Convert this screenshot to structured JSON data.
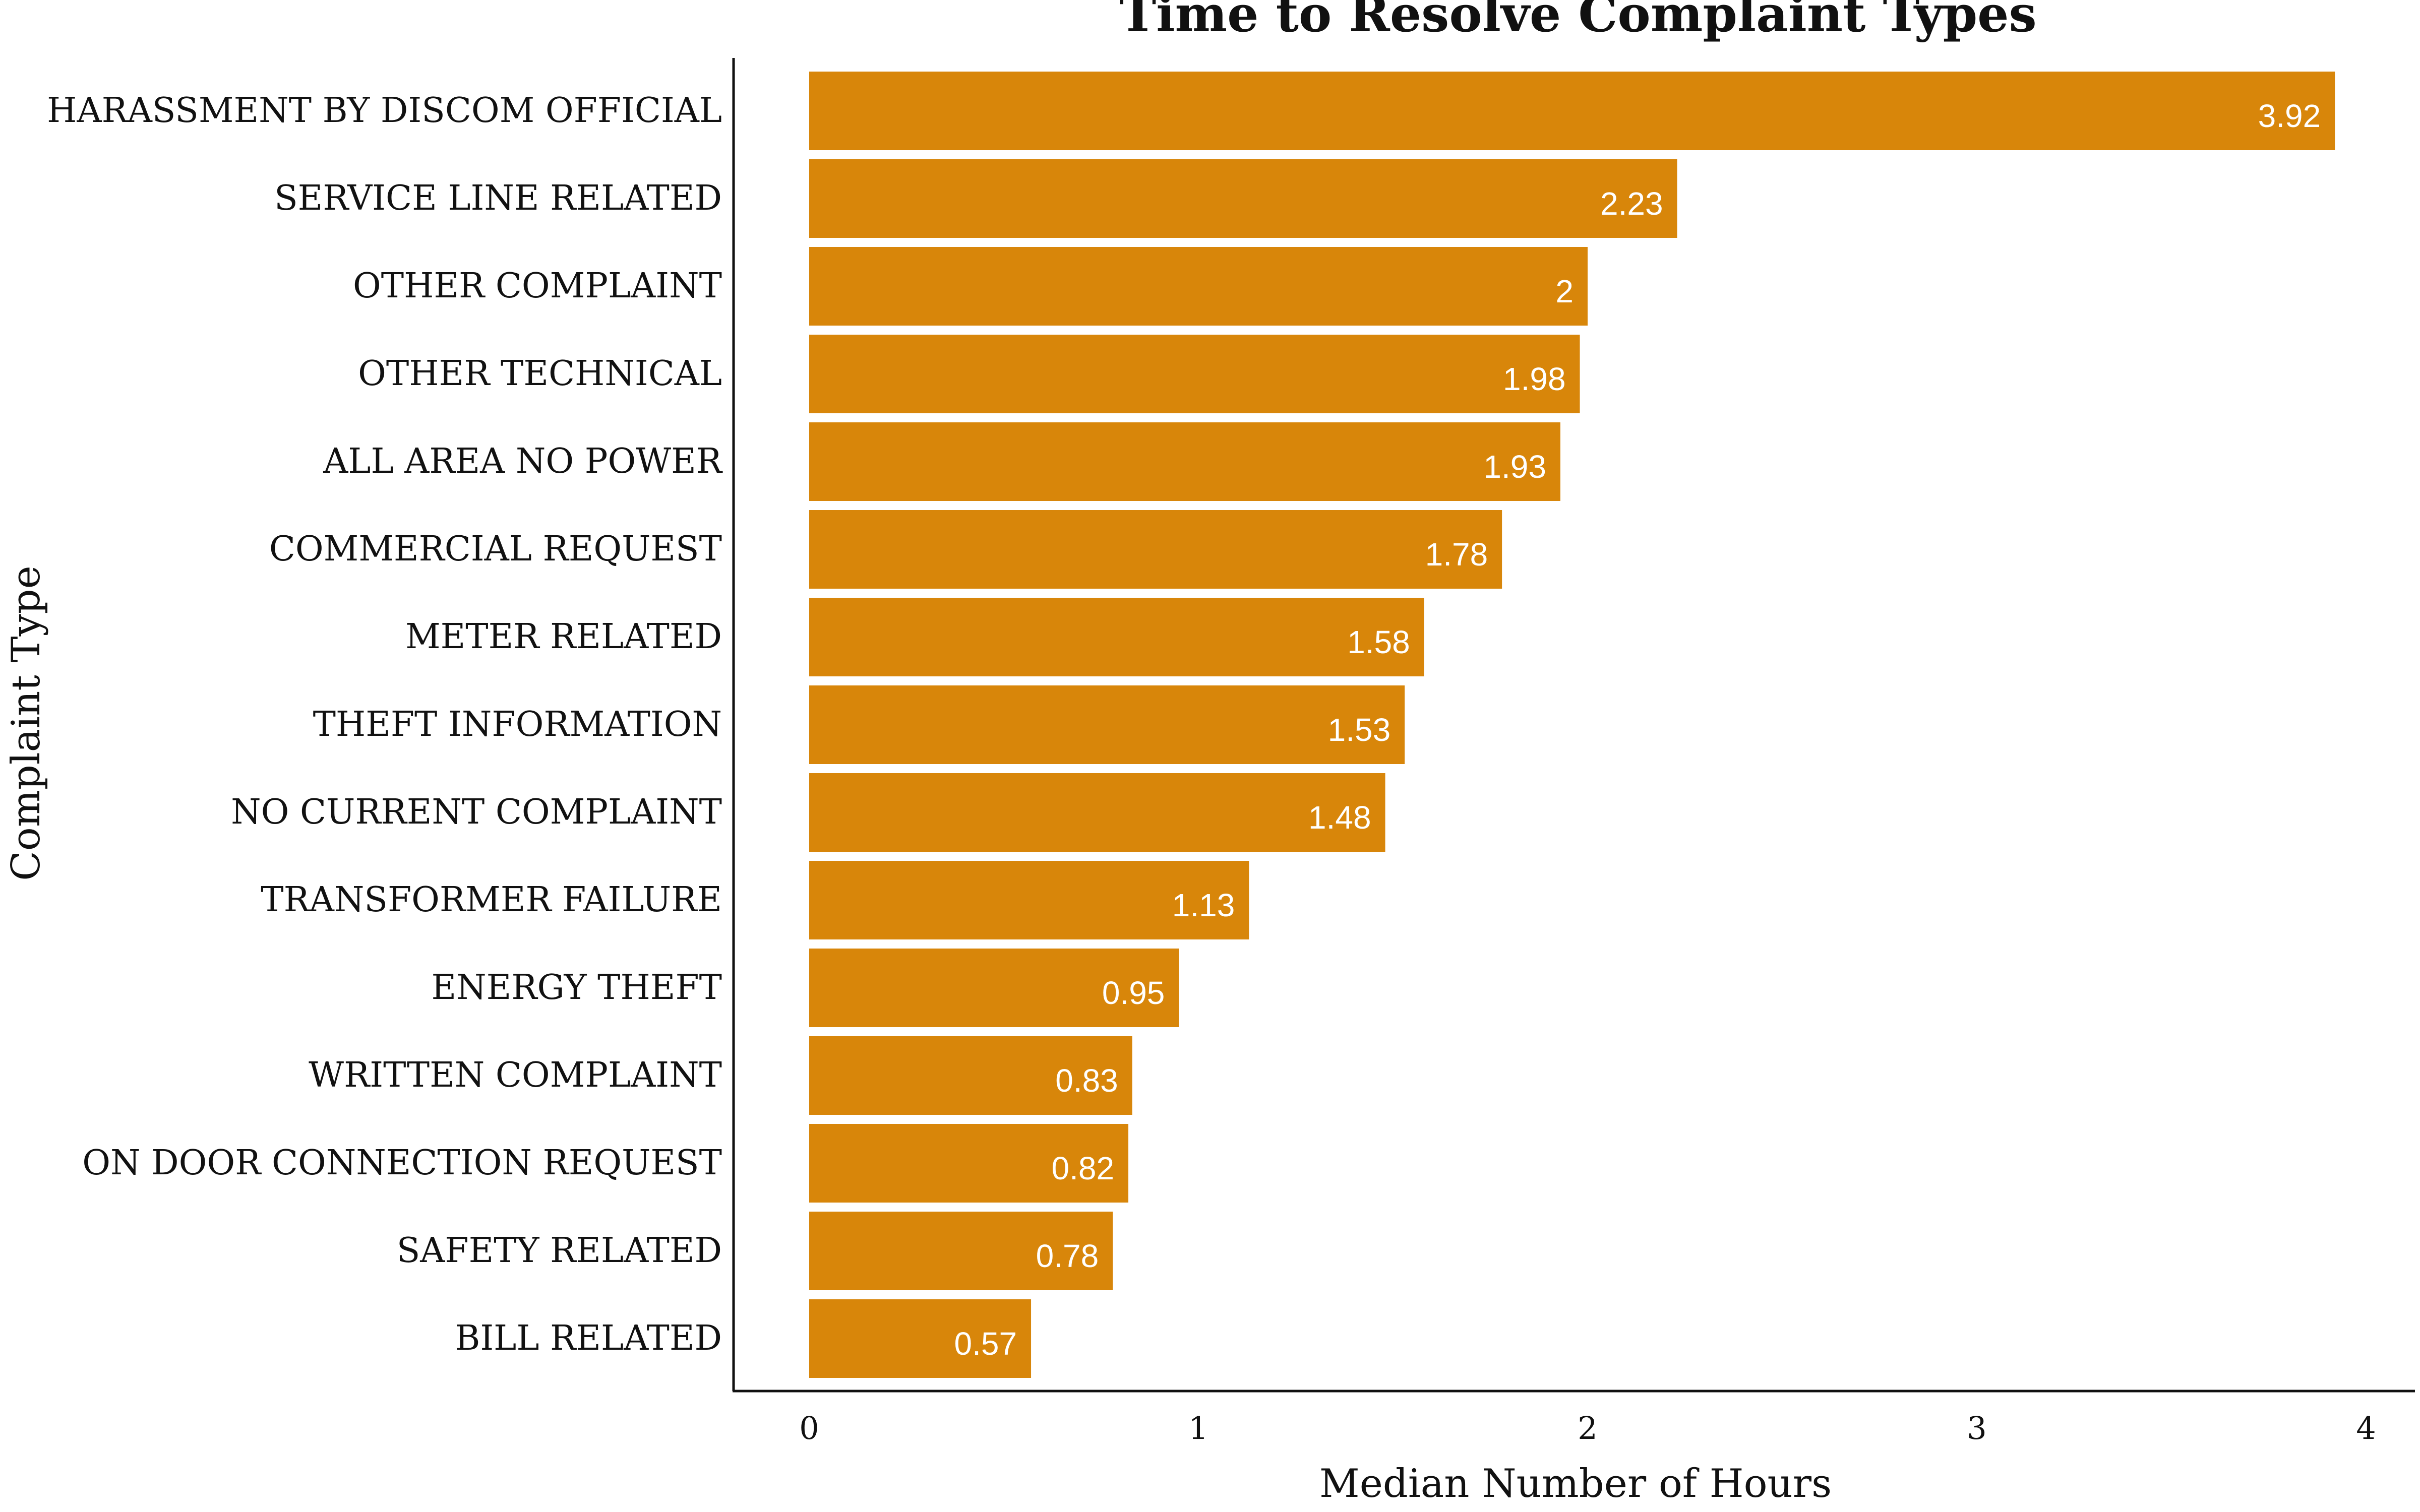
{
  "chart_data": {
    "type": "bar",
    "orientation": "horizontal",
    "title": "Time to Resolve Complaint Types",
    "xlabel": "Median Number of Hours",
    "ylabel": "Complaint Type",
    "xlim": [
      0,
      4
    ],
    "xticks": [
      "0",
      "1",
      "2",
      "3",
      "4"
    ],
    "categories": [
      "HARASSMENT BY DISCOM OFFICIAL",
      "SERVICE LINE RELATED",
      "OTHER COMPLAINT",
      "OTHER TECHNICAL",
      "ALL AREA NO POWER",
      "COMMERCIAL REQUEST",
      "METER RELATED",
      "THEFT INFORMATION",
      "NO CURRENT COMPLAINT",
      "TRANSFORMER FAILURE",
      "ENERGY THEFT",
      "WRITTEN COMPLAINT",
      "ON DOOR CONNECTION REQUEST",
      "SAFETY RELATED",
      "BILL RELATED"
    ],
    "values": [
      3.92,
      2.23,
      2,
      1.98,
      1.93,
      1.78,
      1.58,
      1.53,
      1.48,
      1.13,
      0.95,
      0.83,
      0.82,
      0.78,
      0.57
    ],
    "value_labels": [
      "3.92",
      "2.23",
      "2",
      "1.98",
      "1.93",
      "1.78",
      "1.58",
      "1.53",
      "1.48",
      "1.13",
      "0.95",
      "0.83",
      "0.82",
      "0.78",
      "0.57"
    ],
    "bar_color": "#d8860a",
    "grid": false,
    "legend": "none"
  }
}
